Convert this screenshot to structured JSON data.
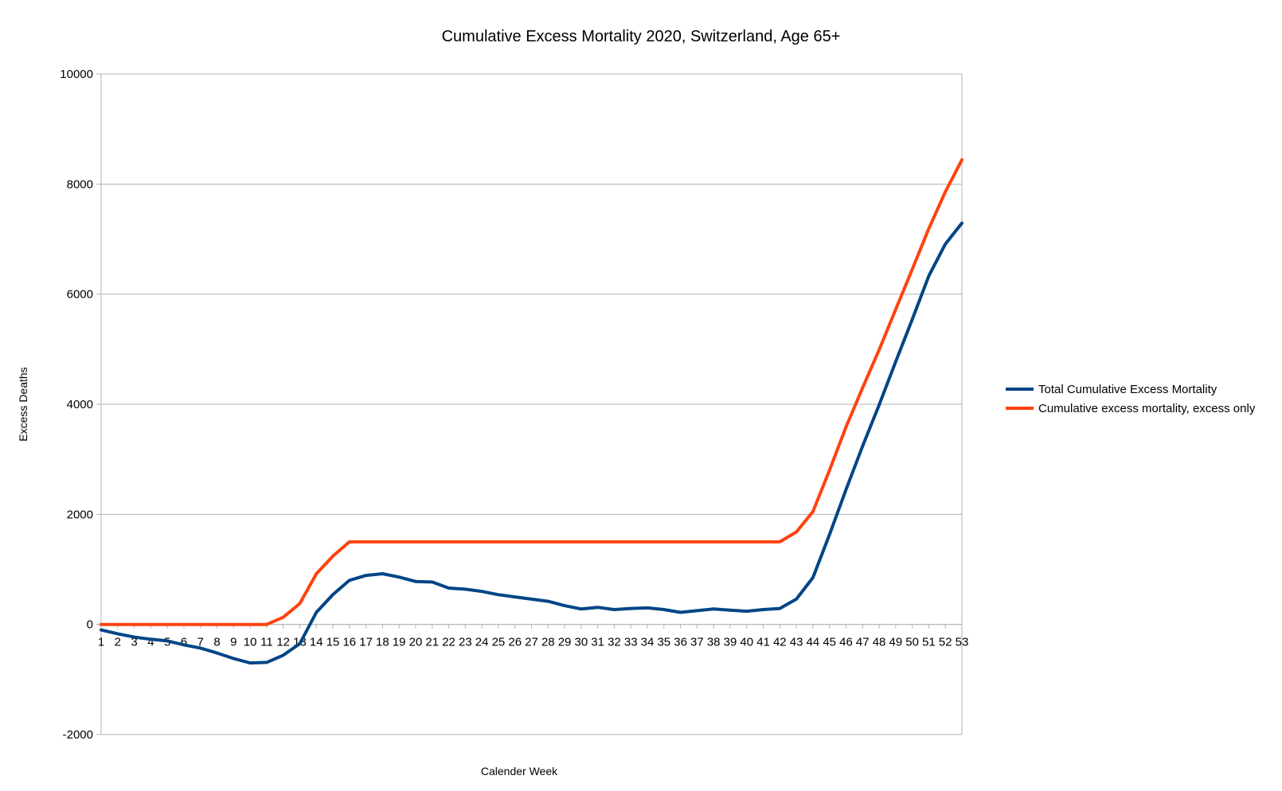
{
  "chart_data": {
    "type": "line",
    "title": "Cumulative Excess Mortality 2020, Switzerland, Age 65+",
    "xlabel": "Calender Week",
    "ylabel": "Excess Deaths",
    "ylim": [
      -2000,
      10000
    ],
    "yticks": [
      -2000,
      0,
      2000,
      4000,
      6000,
      8000,
      10000
    ],
    "grid": true,
    "legend_position": "right",
    "categories": [
      "1",
      "2",
      "3",
      "4",
      "5",
      "6",
      "7",
      "8",
      "9",
      "10",
      "11",
      "12",
      "13",
      "14",
      "15",
      "16",
      "17",
      "18",
      "19",
      "20",
      "21",
      "22",
      "23",
      "24",
      "25",
      "26",
      "27",
      "28",
      "29",
      "30",
      "31",
      "32",
      "33",
      "34",
      "35",
      "36",
      "37",
      "38",
      "39",
      "40",
      "41",
      "42",
      "43",
      "44",
      "45",
      "46",
      "47",
      "48",
      "49",
      "50",
      "51",
      "52",
      "53"
    ],
    "series": [
      {
        "name": "Total Cumulative Excess Mortality",
        "color": "#004586",
        "values": [
          -100,
          -170,
          -230,
          -270,
          -300,
          -370,
          -430,
          -520,
          -620,
          -700,
          -690,
          -560,
          -350,
          220,
          540,
          800,
          890,
          920,
          860,
          780,
          770,
          660,
          640,
          600,
          540,
          500,
          460,
          420,
          340,
          280,
          310,
          270,
          290,
          300,
          270,
          220,
          250,
          280,
          260,
          240,
          270,
          290,
          460,
          850,
          1630,
          2450,
          3240,
          3990,
          4770,
          5540,
          6330,
          6910,
          7290
        ]
      },
      {
        "name": "Cumulative excess mortality, excess only",
        "color": "#ff420e",
        "values": [
          0,
          0,
          0,
          0,
          0,
          0,
          0,
          0,
          0,
          0,
          0,
          130,
          380,
          920,
          1240,
          1500,
          1500,
          1500,
          1500,
          1500,
          1500,
          1500,
          1500,
          1500,
          1500,
          1500,
          1500,
          1500,
          1500,
          1500,
          1500,
          1500,
          1500,
          1500,
          1500,
          1500,
          1500,
          1500,
          1500,
          1500,
          1500,
          1500,
          1680,
          2050,
          2800,
          3590,
          4300,
          4990,
          5720,
          6450,
          7190,
          7860,
          8440
        ]
      }
    ]
  }
}
